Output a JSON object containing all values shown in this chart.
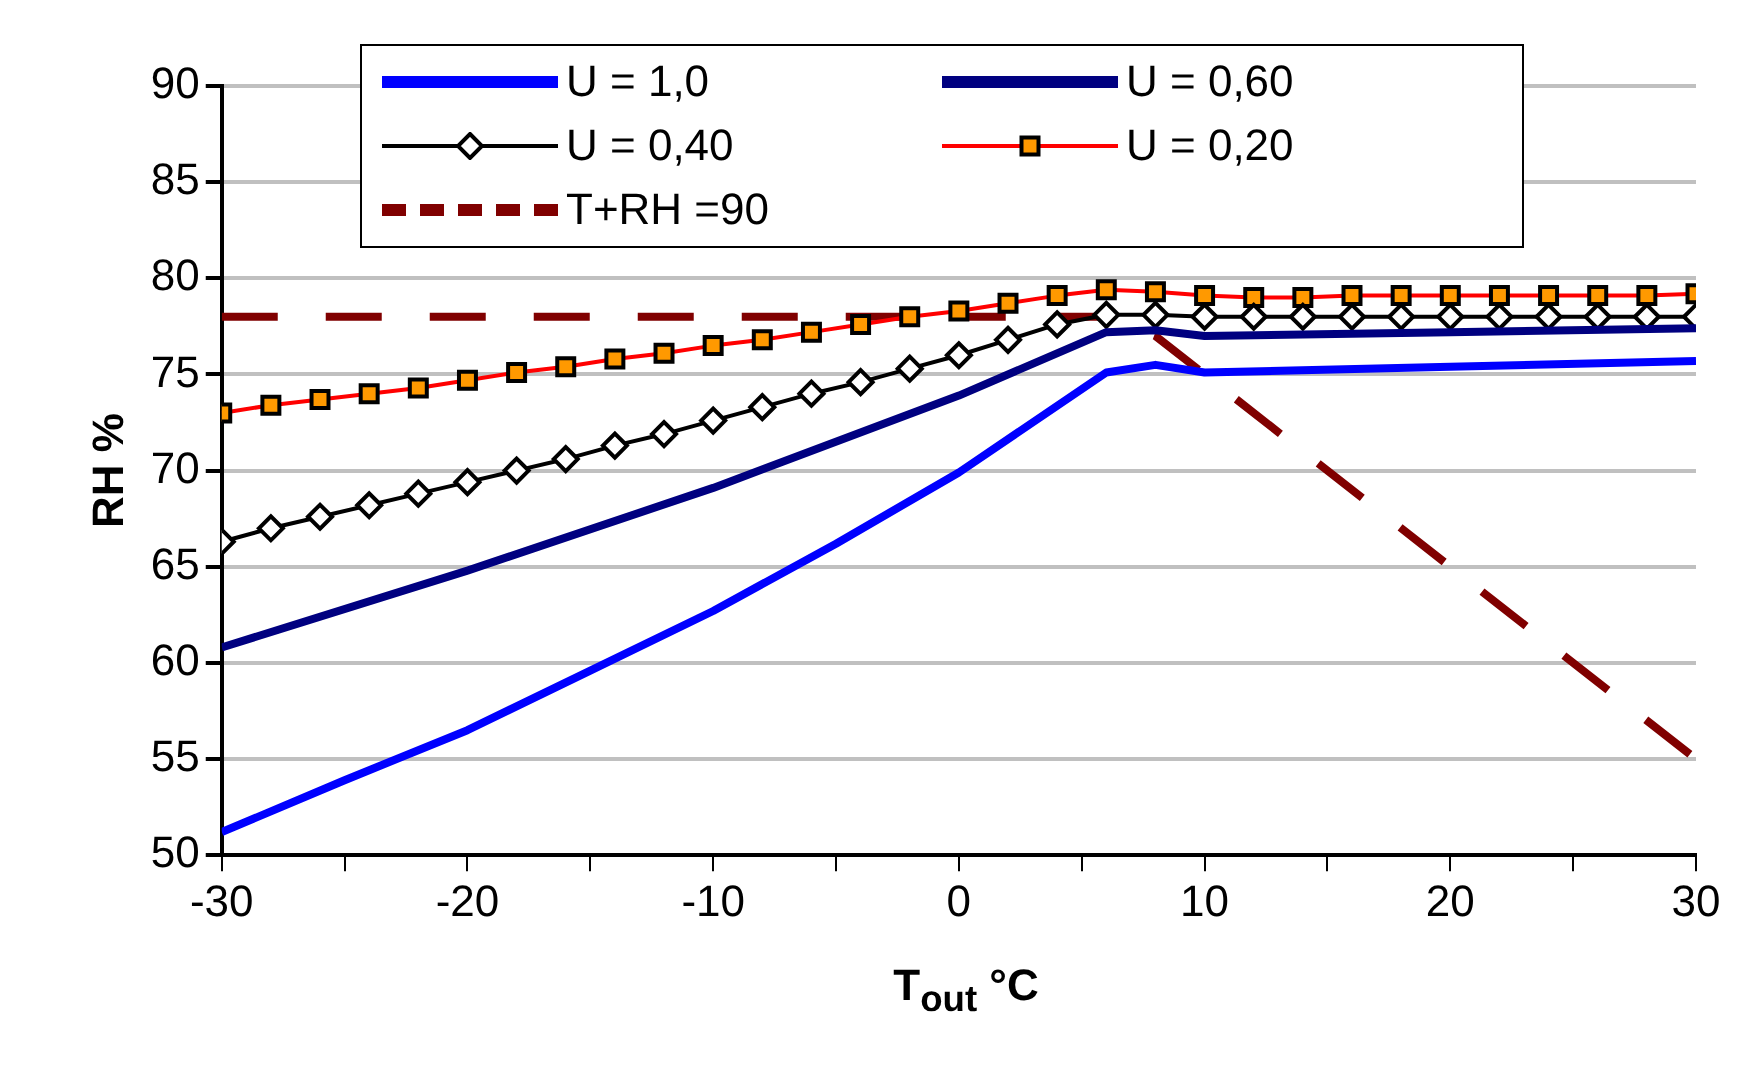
{
  "chart_data": {
    "type": "line",
    "xlabel": "T$_{out}$ °C",
    "ylabel": "RH %",
    "xlim": [
      -30,
      30
    ],
    "xticks": [
      -30,
      {
        "value": -25,
        "label": null
      },
      -20,
      {
        "value": -15,
        "label": null
      },
      -10,
      {
        "value": -5,
        "label": null
      },
      0,
      {
        "value": 5,
        "label": null
      },
      10,
      {
        "value": 15,
        "label": null
      },
      20,
      {
        "value": 25,
        "label": null
      },
      30
    ],
    "ylim": [
      50,
      90
    ],
    "yticks": [
      50,
      55,
      60,
      65,
      70,
      75,
      80,
      85,
      90
    ],
    "grid": "y",
    "legend": "top",
    "series": [
      {
        "name": "U = 1,0",
        "color": "#0000ff",
        "marker": "none",
        "line_style": "solid",
        "x": [
          -30,
          -25,
          -20,
          -15,
          -10,
          -5,
          0,
          6,
          8,
          10,
          20,
          30
        ],
        "values": [
          51.2,
          53.9,
          56.5,
          59.6,
          62.7,
          66.2,
          69.9,
          75.1,
          75.5,
          75.1,
          75.4,
          75.7
        ]
      },
      {
        "name": "U = 0,60",
        "color": "#000080",
        "marker": "none",
        "line_style": "solid",
        "x": [
          -30,
          -20,
          -10,
          0,
          6,
          8,
          10,
          20,
          30
        ],
        "values": [
          60.8,
          64.8,
          69.1,
          73.9,
          77.2,
          77.3,
          77.0,
          77.2,
          77.4
        ]
      },
      {
        "name": "U = 0,40",
        "color": "#000000",
        "marker": "diamond",
        "line_style": "solid",
        "x": [
          -30,
          -28,
          -26,
          -24,
          -22,
          -20,
          -18,
          -16,
          -14,
          -12,
          -10,
          -8,
          -6,
          -4,
          -2,
          0,
          2,
          4,
          6,
          8,
          10,
          12,
          14,
          16,
          18,
          20,
          22,
          24,
          26,
          28,
          30
        ],
        "values": [
          66.3,
          67.0,
          67.6,
          68.2,
          68.8,
          69.4,
          70.0,
          70.6,
          71.3,
          71.9,
          72.6,
          73.3,
          74.0,
          74.6,
          75.3,
          76.0,
          76.8,
          77.6,
          78.1,
          78.1,
          78.0,
          78.0,
          78.0,
          78.0,
          78.0,
          78.0,
          78.0,
          78.0,
          78.0,
          78.0,
          78.0
        ]
      },
      {
        "name": "U = 0,20",
        "color": "#ff0000",
        "marker": "square",
        "line_style": "solid",
        "x": [
          -30,
          -28,
          -26,
          -24,
          -22,
          -20,
          -18,
          -16,
          -14,
          -12,
          -10,
          -8,
          -6,
          -4,
          -2,
          0,
          2,
          4,
          6,
          8,
          10,
          12,
          14,
          16,
          18,
          20,
          22,
          24,
          26,
          28,
          30
        ],
        "values": [
          73.0,
          73.4,
          73.7,
          74.0,
          74.3,
          74.7,
          75.1,
          75.4,
          75.8,
          76.1,
          76.5,
          76.8,
          77.2,
          77.6,
          78.0,
          78.3,
          78.7,
          79.1,
          79.4,
          79.3,
          79.1,
          79.0,
          79.0,
          79.1,
          79.1,
          79.1,
          79.1,
          79.1,
          79.1,
          79.1,
          79.2
        ]
      },
      {
        "name": "T+RH =90",
        "color": "#800000",
        "marker": "none",
        "line_style": "dashed",
        "x": [
          -30,
          6,
          8,
          30
        ],
        "values": [
          78,
          78,
          77,
          55
        ]
      }
    ]
  }
}
